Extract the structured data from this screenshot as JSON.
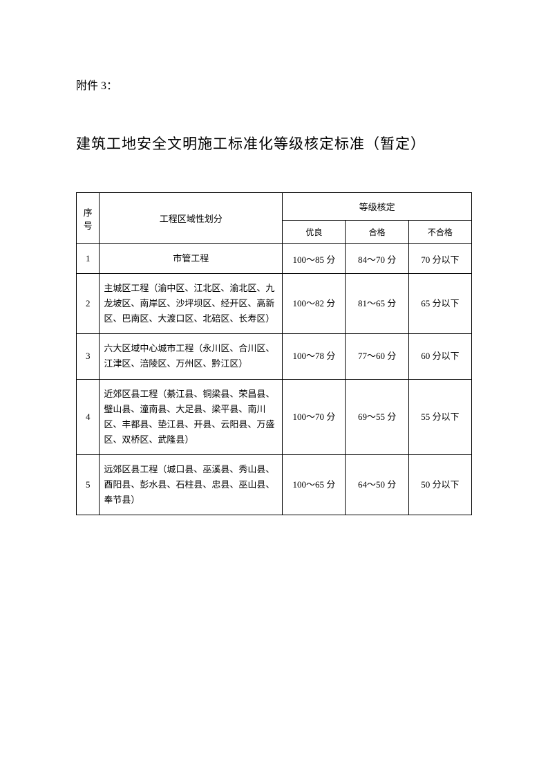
{
  "attachment_label": "附件 3：",
  "main_title": "建筑工地安全文明施工标准化等级核定标准（暂定）",
  "table": {
    "headers": {
      "seq": "序号",
      "region": "工程区域性划分",
      "grade_group": "等级核定",
      "grade_excellent": "优良",
      "grade_pass": "合格",
      "grade_fail": "不合格"
    },
    "rows": [
      {
        "seq": "1",
        "region": "市管工程",
        "region_centered": true,
        "excellent": "100～85 分",
        "pass": "84～70 分",
        "fail": "70 分以下"
      },
      {
        "seq": "2",
        "region": "主城区工程（渝中区、江北区、渝北区、九龙坡区、南岸区、沙坪坝区、经开区、高新区、巴南区、大渡口区、北碚区、长寿区）",
        "region_centered": false,
        "excellent": "100～82 分",
        "pass": "81～65 分",
        "fail": "65 分以下"
      },
      {
        "seq": "3",
        "region": "六大区域中心城市工程（永川区、合川区、江津区、涪陵区、万州区、黔江区）",
        "region_centered": false,
        "excellent": "100～78 分",
        "pass": "77～60 分",
        "fail": "60 分以下"
      },
      {
        "seq": "4",
        "region": "近郊区县工程（綦江县、铜梁县、荣昌县、璧山县、潼南县、大足县、梁平县、南川区、丰都县、垫江县、开县、云阳县、万盛区、双桥区、武隆县）",
        "region_centered": false,
        "excellent": "100～70 分",
        "pass": "69～55 分",
        "fail": "55 分以下"
      },
      {
        "seq": "5",
        "region": "远郊区县工程（城口县、巫溪县、秀山县、酉阳县、彭水县、石柱县、忠县、巫山县、奉节县）",
        "region_centered": false,
        "excellent": "100～65 分",
        "pass": "64～50 分",
        "fail": "50 分以下"
      }
    ]
  }
}
